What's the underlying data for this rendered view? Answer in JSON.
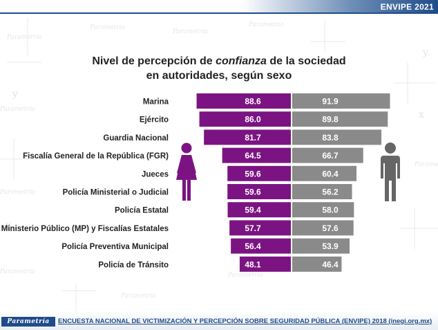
{
  "header": {
    "badge": "ENVIPE 2021",
    "accent_color": "#1f4b8a"
  },
  "title": {
    "line1_before": "Nivel de percepción de ",
    "line1_emphasis": "confianza",
    "line1_after": " de la sociedad",
    "line2": "en autoridades, según sexo"
  },
  "footer": {
    "brand": "Parametría",
    "source": "ENCUESTA NACIONAL DE VICTIMIZACIÓN Y PERCEPCIÓN SOBRE SEGURIDAD PÚBLICA (ENVIPE) 2018 (inegi.org.mx)"
  },
  "background_text": "Parametría",
  "icons": {
    "women": "female-figure-icon",
    "men": "male-figure-icon"
  },
  "chart_data": {
    "type": "bar",
    "orientation": "horizontal-butterfly",
    "categories": [
      "Marina",
      "Ejército",
      "Guardia Nacional",
      "Fiscalía General de la República (FGR)",
      "Jueces",
      "Policía Ministerial o Judicial",
      "Policía Estatal",
      "Ministerio Público (MP) y Fiscalías Estatales",
      "Policía Preventiva Municipal",
      "Policía de Tránsito"
    ],
    "series": [
      {
        "values": [
          88.6,
          86.0,
          81.7,
          64.5,
          59.6,
          59.6,
          59.4,
          57.7,
          56.4,
          48.1
        ],
        "labels": [
          "88.6",
          "86.0",
          "81.7",
          "64.5",
          "59.6",
          "59.6",
          "59.4",
          "57.7",
          "56.4",
          "48.1"
        ],
        "color": "#7b1482"
      },
      {
        "values": [
          91.9,
          89.8,
          83.8,
          66.7,
          60.4,
          56.2,
          58.0,
          57.6,
          53.9,
          46.4
        ],
        "labels": [
          "91.9",
          "89.8",
          "83.8",
          "66.7",
          "60.4",
          "56.2",
          "58.0",
          "57.6",
          "53.9",
          "46.4"
        ],
        "color": "#8a8a8a"
      }
    ],
    "title": "Nivel de percepción de confianza de la sociedad en autoridades, según sexo",
    "xlim": [
      0,
      100
    ],
    "grid": false,
    "legend": "icons"
  }
}
